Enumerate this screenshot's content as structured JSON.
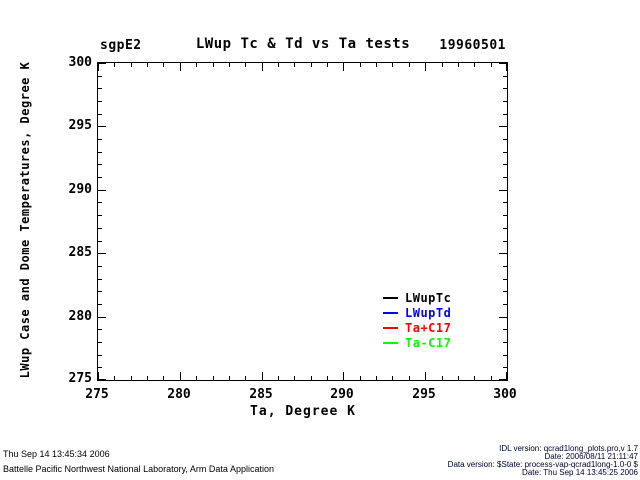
{
  "header": {
    "site_label": "sgpE2",
    "title": "LWup Tc & Td vs Ta tests",
    "date_label": "19960501"
  },
  "chart_data": {
    "type": "line",
    "title": "LWup Tc & Td vs Ta tests",
    "site": "sgpE2",
    "date": "19960501",
    "xlabel": "Ta, Degree K",
    "ylabel": "LWup Case and Dome Temperatures, Degree K",
    "xlim": [
      275,
      300
    ],
    "ylim": [
      275,
      300
    ],
    "x_major_ticks": [
      275,
      280,
      285,
      290,
      295,
      300
    ],
    "y_major_ticks": [
      275,
      280,
      285,
      290,
      295,
      300
    ],
    "minor_tick_interval": 1,
    "grid": false,
    "legend_position": "inside-right",
    "series": [
      {
        "name": "LWupTc",
        "color": "#000000",
        "x": [],
        "values": []
      },
      {
        "name": "LWupTd",
        "color": "#0000ff",
        "x": [],
        "values": []
      },
      {
        "name": "Ta+C17",
        "color": "#ff0000",
        "x": [],
        "values": []
      },
      {
        "name": "Ta-C17",
        "color": "#00ff00",
        "x": [],
        "values": []
      }
    ]
  },
  "footer": {
    "left": {
      "timestamp": "Thu Sep 14 13:45:34 2006",
      "organization": "Battelle Pacific Northwest National Laboratory, Arm Data Application"
    },
    "right": {
      "idl_version": "IDL version: qcrad1long_plots.pro,v 1.7",
      "idl_date": "Date: 2006/08/11 21:11:47",
      "data_version": "Data version: $State: process-vap-qcrad1long-1.0-0 $",
      "data_date": "Date: Thu Sep 14 13:45:25 2006"
    }
  },
  "colors": {
    "axis": "#000000",
    "background": "#ffffff",
    "footer_right_text": "#000033"
  }
}
